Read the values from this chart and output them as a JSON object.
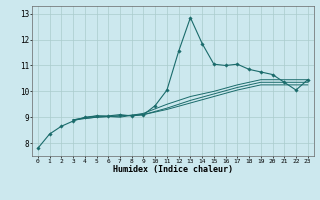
{
  "xlabel": "Humidex (Indice chaleur)",
  "xlim": [
    -0.5,
    23.5
  ],
  "ylim": [
    7.5,
    13.3
  ],
  "xticks": [
    0,
    1,
    2,
    3,
    4,
    5,
    6,
    7,
    8,
    9,
    10,
    11,
    12,
    13,
    14,
    15,
    16,
    17,
    18,
    19,
    20,
    21,
    22,
    23
  ],
  "yticks": [
    8,
    9,
    10,
    11,
    12,
    13
  ],
  "background_color": "#cce8ee",
  "grid_color": "#aacccc",
  "line_color": "#1a6b6b",
  "lines": [
    {
      "x": [
        0,
        1,
        2,
        3,
        4,
        5,
        6,
        7,
        8,
        9,
        10,
        11,
        12,
        13,
        14,
        15,
        16,
        17,
        18,
        19,
        20,
        21,
        22,
        23
      ],
      "y": [
        7.8,
        8.35,
        8.65,
        8.85,
        9.0,
        9.05,
        9.05,
        9.1,
        9.05,
        9.1,
        9.45,
        10.05,
        11.55,
        12.85,
        11.85,
        11.05,
        11.0,
        11.05,
        10.85,
        10.75,
        10.65,
        10.35,
        10.05,
        10.45
      ],
      "marker": true
    },
    {
      "x": [
        3,
        5,
        7,
        9,
        11,
        13,
        15,
        17,
        19,
        21,
        23
      ],
      "y": [
        8.9,
        9.05,
        9.0,
        9.15,
        9.5,
        9.8,
        10.0,
        10.25,
        10.45,
        10.45,
        10.45
      ],
      "marker": false
    },
    {
      "x": [
        3,
        5,
        7,
        9,
        11,
        13,
        15,
        17,
        19,
        21,
        23
      ],
      "y": [
        8.9,
        9.0,
        9.05,
        9.1,
        9.35,
        9.65,
        9.9,
        10.15,
        10.35,
        10.35,
        10.35
      ],
      "marker": false
    },
    {
      "x": [
        3,
        5,
        7,
        9,
        11,
        13,
        15,
        17,
        19,
        21,
        23
      ],
      "y": [
        8.9,
        9.0,
        9.05,
        9.1,
        9.3,
        9.55,
        9.8,
        10.05,
        10.25,
        10.25,
        10.25
      ],
      "marker": false
    }
  ]
}
